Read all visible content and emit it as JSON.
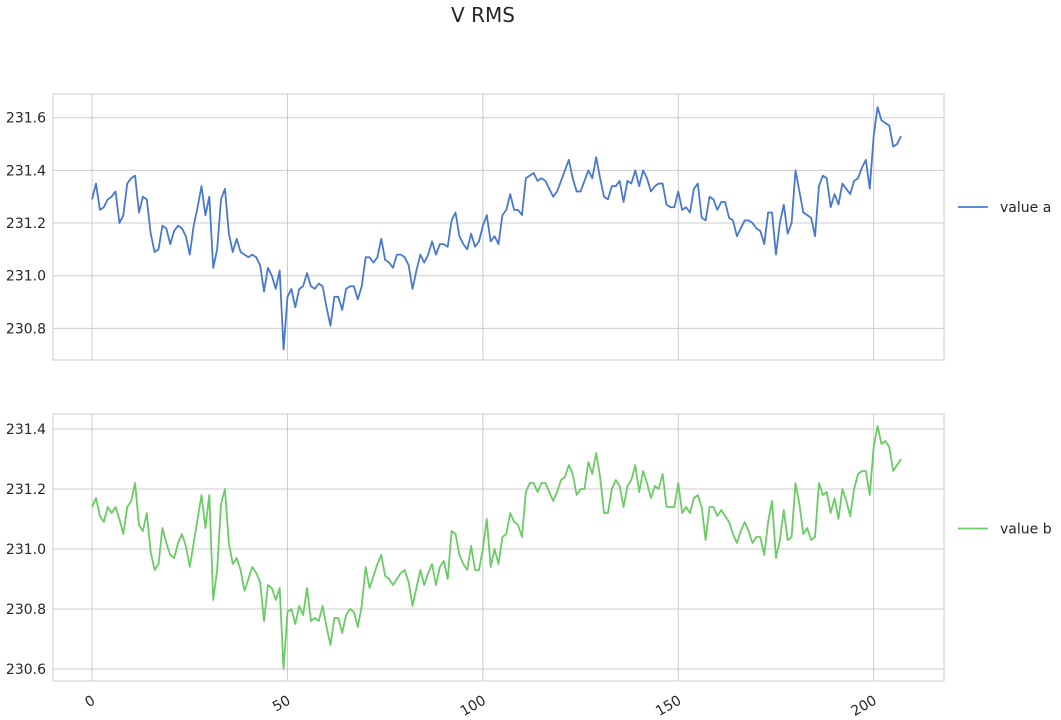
{
  "chart_data": {
    "type": "line",
    "title": "V RMS",
    "grid": true,
    "legend_position": "right",
    "shared_x_ticks": [
      "0",
      "50",
      "100",
      "150",
      "200"
    ],
    "x_tick_values": [
      0,
      50,
      100,
      150,
      200
    ],
    "xlim": [
      -10,
      218
    ],
    "panels": [
      {
        "series": [
          {
            "name": "value a",
            "color": "#4878cf",
            "x_start": 0,
            "values": [
              231.29,
              231.35,
              231.25,
              231.26,
              231.29,
              231.3,
              231.32,
              231.2,
              231.23,
              231.35,
              231.37,
              231.38,
              231.24,
              231.3,
              231.29,
              231.16,
              231.09,
              231.1,
              231.19,
              231.18,
              231.12,
              231.17,
              231.19,
              231.18,
              231.15,
              231.08,
              231.19,
              231.26,
              231.34,
              231.23,
              231.3,
              231.03,
              231.1,
              231.29,
              231.33,
              231.16,
              231.09,
              231.14,
              231.09,
              231.08,
              231.07,
              231.08,
              231.07,
              231.04,
              230.94,
              231.03,
              231.0,
              230.95,
              231.02,
              230.72,
              230.92,
              230.95,
              230.88,
              230.95,
              230.96,
              231.01,
              230.96,
              230.95,
              230.97,
              230.96,
              230.88,
              230.81,
              230.92,
              230.92,
              230.87,
              230.95,
              230.96,
              230.96,
              230.91,
              230.96,
              231.07,
              231.07,
              231.05,
              231.07,
              231.14,
              231.06,
              231.05,
              231.03,
              231.08,
              231.08,
              231.07,
              231.04,
              230.95,
              231.02,
              231.08,
              231.05,
              231.08,
              231.13,
              231.08,
              231.12,
              231.12,
              231.11,
              231.21,
              231.24,
              231.15,
              231.12,
              231.1,
              231.16,
              231.11,
              231.13,
              231.19,
              231.23,
              231.13,
              231.15,
              231.12,
              231.23,
              231.25,
              231.31,
              231.25,
              231.25,
              231.23,
              231.37,
              231.38,
              231.39,
              231.36,
              231.37,
              231.36,
              231.33,
              231.3,
              231.32,
              231.36,
              231.4,
              231.44,
              231.37,
              231.32,
              231.32,
              231.36,
              231.4,
              231.37,
              231.45,
              231.37,
              231.3,
              231.29,
              231.34,
              231.34,
              231.36,
              231.28,
              231.36,
              231.35,
              231.4,
              231.34,
              231.4,
              231.37,
              231.32,
              231.34,
              231.35,
              231.35,
              231.27,
              231.26,
              231.26,
              231.32,
              231.25,
              231.26,
              231.24,
              231.33,
              231.35,
              231.22,
              231.21,
              231.3,
              231.29,
              231.25,
              231.28,
              231.28,
              231.22,
              231.21,
              231.15,
              231.18,
              231.21,
              231.21,
              231.2,
              231.18,
              231.17,
              231.12,
              231.24,
              231.24,
              231.08,
              231.2,
              231.27,
              231.16,
              231.2,
              231.4,
              231.32,
              231.24,
              231.23,
              231.22,
              231.15,
              231.34,
              231.38,
              231.37,
              231.26,
              231.31,
              231.27,
              231.35,
              231.33,
              231.31,
              231.36,
              231.37,
              231.41,
              231.44,
              231.33,
              231.53,
              231.64,
              231.59,
              231.58,
              231.57,
              231.49,
              231.5,
              231.53
            ]
          }
        ],
        "ylim": [
          230.68,
          231.69
        ],
        "y_ticks": [
          230.8,
          231.0,
          231.2,
          231.4,
          231.6
        ],
        "y_tick_labels": [
          "230.8",
          "231.0",
          "231.2",
          "231.4",
          "231.6"
        ]
      },
      {
        "series": [
          {
            "name": "value b",
            "color": "#6acc65",
            "x_start": 0,
            "values": [
              231.14,
              231.17,
              231.11,
              231.09,
              231.14,
              231.12,
              231.14,
              231.1,
              231.05,
              231.14,
              231.16,
              231.22,
              231.08,
              231.06,
              231.12,
              230.99,
              230.93,
              230.95,
              231.07,
              231.02,
              230.98,
              230.97,
              231.02,
              231.05,
              231.01,
              230.94,
              231.02,
              231.1,
              231.18,
              231.07,
              231.18,
              230.83,
              230.93,
              231.15,
              231.2,
              231.02,
              230.95,
              230.97,
              230.93,
              230.86,
              230.9,
              230.94,
              230.92,
              230.89,
              230.76,
              230.88,
              230.87,
              230.83,
              230.87,
              230.6,
              230.79,
              230.8,
              230.75,
              230.81,
              230.78,
              230.87,
              230.76,
              230.77,
              230.76,
              230.81,
              230.74,
              230.68,
              230.77,
              230.77,
              230.72,
              230.78,
              230.8,
              230.79,
              230.74,
              230.81,
              230.94,
              230.87,
              230.91,
              230.95,
              230.98,
              230.91,
              230.9,
              230.88,
              230.9,
              230.92,
              230.93,
              230.89,
              230.81,
              230.87,
              230.93,
              230.88,
              230.92,
              230.95,
              230.88,
              230.94,
              230.96,
              230.9,
              231.06,
              231.05,
              230.98,
              230.95,
              230.93,
              231.01,
              230.93,
              230.93,
              231.0,
              231.1,
              230.94,
              231.0,
              230.95,
              231.04,
              231.05,
              231.12,
              231.09,
              231.08,
              231.04,
              231.19,
              231.22,
              231.22,
              231.19,
              231.22,
              231.22,
              231.19,
              231.16,
              231.19,
              231.23,
              231.24,
              231.28,
              231.25,
              231.18,
              231.2,
              231.2,
              231.29,
              231.25,
              231.32,
              231.24,
              231.12,
              231.12,
              231.2,
              231.23,
              231.21,
              231.14,
              231.21,
              231.23,
              231.28,
              231.19,
              231.26,
              231.22,
              231.17,
              231.21,
              231.2,
              231.25,
              231.14,
              231.14,
              231.14,
              231.22,
              231.12,
              231.14,
              231.12,
              231.17,
              231.18,
              231.14,
              231.03,
              231.14,
              231.14,
              231.11,
              231.13,
              231.11,
              231.09,
              231.05,
              231.02,
              231.06,
              231.09,
              231.06,
              231.02,
              231.04,
              231.04,
              230.98,
              231.09,
              231.16,
              230.97,
              231.03,
              231.13,
              231.03,
              231.04,
              231.22,
              231.15,
              231.05,
              231.07,
              231.03,
              231.04,
              231.22,
              231.18,
              231.19,
              231.12,
              231.17,
              231.1,
              231.2,
              231.16,
              231.11,
              231.2,
              231.25,
              231.26,
              231.26,
              231.18,
              231.34,
              231.41,
              231.35,
              231.36,
              231.34,
              231.26,
              231.28,
              231.3
            ]
          }
        ],
        "ylim": [
          230.56,
          231.45
        ],
        "y_ticks": [
          230.6,
          230.8,
          231.0,
          231.2,
          231.4
        ],
        "y_tick_labels": [
          "230.6",
          "230.8",
          "231.0",
          "231.2",
          "231.4"
        ]
      }
    ]
  }
}
